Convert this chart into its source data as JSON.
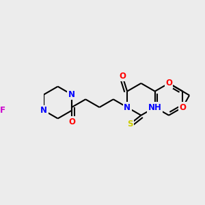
{
  "bg": "#ececec",
  "bond_color": "#000000",
  "lw": 1.5,
  "atom_colors": {
    "F": "#cc00cc",
    "N": "#0000ff",
    "O": "#ff0000",
    "S": "#cccc00"
  },
  "fs": 8.5,
  "figsize": [
    3.0,
    3.0
  ],
  "dpi": 100
}
